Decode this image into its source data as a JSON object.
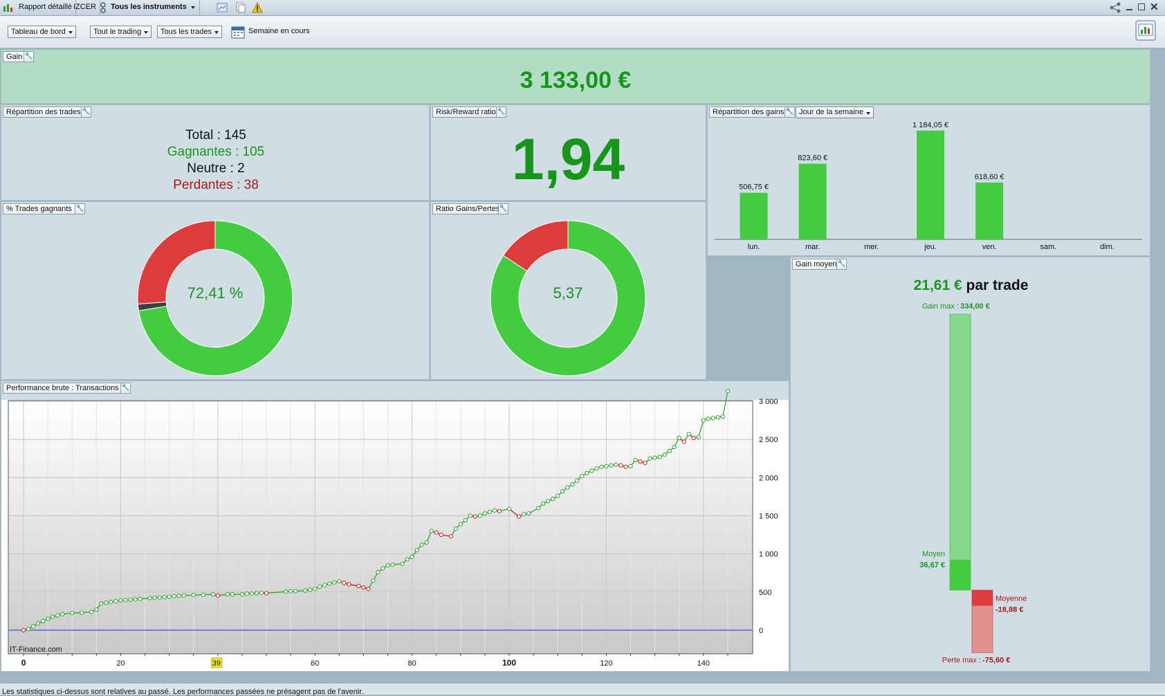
{
  "titlebar": {
    "report_label": "Rapport détaillé",
    "account_label": "IZCER",
    "instruments_label": "Tous les instruments"
  },
  "toolbar": {
    "dashboard_select": "Tableau de bord",
    "trading_select": "Tout le trading",
    "trades_select": "Tous les trades",
    "period_label": "Semaine en cours"
  },
  "gain": {
    "tag": "Gain",
    "value": "3 133,00 €"
  },
  "repartition": {
    "tag": "Répartition des trades",
    "total_label": "Total : 145",
    "winning_label": "Gagnantes : 105",
    "neutral_label": "Neutre : 2",
    "losing_label": "Perdantes : 38"
  },
  "risk_reward": {
    "tag": "Risk/Reward ratio",
    "value": "1,94"
  },
  "win_pct": {
    "tag": "% Trades gagnants",
    "value": "72,41 %",
    "segments": [
      {
        "label": "Gagnantes",
        "value": 105,
        "color": "#43cc3f"
      },
      {
        "label": "Neutre",
        "value": 2,
        "color": "#3a3f42"
      },
      {
        "label": "Perdantes",
        "value": 38,
        "color": "#de3b3b"
      }
    ]
  },
  "ratio_gp": {
    "tag": "Ratio Gains/Pertes",
    "value": "5,37",
    "segments": [
      {
        "label": "Gains",
        "value": 5.37,
        "color": "#43cc3f"
      },
      {
        "label": "Pertes",
        "value": 1,
        "color": "#de3b3b"
      }
    ]
  },
  "gains_split": {
    "tag": "Répartition des gains",
    "select": "Jour de la semaine"
  },
  "gain_moyen": {
    "tag": "Gain moyen",
    "value": "21,61 €",
    "suffix": "par trade",
    "max_label": "Gain max :",
    "max_value": "334,00 €",
    "avg_gain_label": "Moyen",
    "avg_gain_value": "36,67 €",
    "avg_loss_label": "Moyenne",
    "avg_loss_value": "-18,88 €",
    "min_label": "Perte max :",
    "min_value": "-75,60 €",
    "scale": {
      "max_gain": 334.0,
      "avg_gain": 36.67,
      "avg_loss": 18.88,
      "max_loss": 75.6
    }
  },
  "performance": {
    "tag": "Performance brute : Transactions",
    "watermark": "IT-Finance.com",
    "cursor_label": "39"
  },
  "footer": {
    "disclaimer": "Les statistiques ci-dessus sont relatives au passé. Les performances passées ne présagent pas de l'avenir."
  },
  "colors": {
    "gain_green": "#17961b",
    "loss_red": "#a81a1a",
    "bar_green": "#43cc3f",
    "bar_red": "#de3b3b"
  },
  "chart_data": [
    {
      "type": "bar",
      "title": "Répartition des gains",
      "categories": [
        "lun.",
        "mar.",
        "mer.",
        "jeu.",
        "ven.",
        "sam.",
        "dim."
      ],
      "values": [
        506.75,
        823.6,
        0,
        1184.05,
        618.6,
        0,
        0
      ],
      "data_labels": [
        "506,75 €",
        "823,60 €",
        "",
        "1 184,05 €",
        "618,60 €",
        "",
        ""
      ],
      "ylim": [
        0,
        1250
      ],
      "grid": false
    },
    {
      "type": "line",
      "title": "Performance brute : Transactions",
      "xlim": [
        -3,
        150
      ],
      "ylim": [
        -300,
        3000
      ],
      "x_ticks": [
        0,
        20,
        40,
        60,
        80,
        100,
        120,
        140
      ],
      "y_ticks": [
        0,
        500,
        1000,
        1500,
        2000,
        2500,
        3000
      ],
      "y_tick_labels": [
        "0",
        "500",
        "1 000",
        "1 500",
        "2 000",
        "2 500",
        "3 000"
      ],
      "grid": true,
      "points": [
        [
          0,
          0
        ],
        [
          1,
          15
        ],
        [
          2,
          50
        ],
        [
          3,
          90
        ],
        [
          4,
          120
        ],
        [
          5,
          150
        ],
        [
          6,
          175
        ],
        [
          7,
          195
        ],
        [
          8,
          210
        ],
        [
          10,
          225
        ],
        [
          12,
          230
        ],
        [
          14,
          240
        ],
        [
          15,
          270
        ],
        [
          16,
          350
        ],
        [
          17,
          360
        ],
        [
          18,
          370
        ],
        [
          19,
          380
        ],
        [
          20,
          390
        ],
        [
          21,
          395
        ],
        [
          22,
          400
        ],
        [
          23,
          405
        ],
        [
          24,
          410
        ],
        [
          26,
          420
        ],
        [
          27,
          425
        ],
        [
          28,
          430
        ],
        [
          29,
          435
        ],
        [
          30,
          440
        ],
        [
          31,
          445
        ],
        [
          32,
          450
        ],
        [
          33,
          455
        ],
        [
          35,
          460
        ],
        [
          37,
          465
        ],
        [
          39,
          470
        ],
        [
          40,
          455
        ],
        [
          42,
          470
        ],
        [
          43,
          470
        ],
        [
          45,
          470
        ],
        [
          46,
          480
        ],
        [
          47,
          480
        ],
        [
          48,
          485
        ],
        [
          49,
          490
        ],
        [
          50,
          485
        ],
        [
          54,
          505
        ],
        [
          55,
          510
        ],
        [
          56,
          510
        ],
        [
          58,
          520
        ],
        [
          59,
          530
        ],
        [
          60,
          545
        ],
        [
          61,
          570
        ],
        [
          62,
          590
        ],
        [
          63,
          610
        ],
        [
          64,
          625
        ],
        [
          65,
          640
        ],
        [
          66,
          620
        ],
        [
          67,
          600
        ],
        [
          69,
          580
        ],
        [
          70,
          560
        ],
        [
          71,
          540
        ],
        [
          72,
          650
        ],
        [
          73,
          760
        ],
        [
          74,
          810
        ],
        [
          75,
          850
        ],
        [
          76,
          860
        ],
        [
          78,
          870
        ],
        [
          79,
          930
        ],
        [
          80,
          960
        ],
        [
          81,
          1050
        ],
        [
          82,
          1120
        ],
        [
          83,
          1150
        ],
        [
          84,
          1300
        ],
        [
          85,
          1280
        ],
        [
          86,
          1250
        ],
        [
          88,
          1230
        ],
        [
          89,
          1330
        ],
        [
          90,
          1390
        ],
        [
          91,
          1440
        ],
        [
          92,
          1500
        ],
        [
          93,
          1490
        ],
        [
          94,
          1500
        ],
        [
          95,
          1530
        ],
        [
          96,
          1550
        ],
        [
          97,
          1570
        ],
        [
          98,
          1560
        ],
        [
          100,
          1590
        ],
        [
          102,
          1490
        ],
        [
          103,
          1520
        ],
        [
          104,
          1530
        ],
        [
          106,
          1600
        ],
        [
          107,
          1660
        ],
        [
          108,
          1690
        ],
        [
          109,
          1720
        ],
        [
          110,
          1760
        ],
        [
          111,
          1820
        ],
        [
          112,
          1870
        ],
        [
          113,
          1910
        ],
        [
          114,
          1960
        ],
        [
          115,
          2020
        ],
        [
          116,
          2060
        ],
        [
          117,
          2090
        ],
        [
          118,
          2120
        ],
        [
          119,
          2140
        ],
        [
          120,
          2150
        ],
        [
          121,
          2160
        ],
        [
          122,
          2170
        ],
        [
          123,
          2160
        ],
        [
          124,
          2140
        ],
        [
          125,
          2150
        ],
        [
          126,
          2230
        ],
        [
          127,
          2210
        ],
        [
          128,
          2190
        ],
        [
          129,
          2250
        ],
        [
          130,
          2260
        ],
        [
          131,
          2270
        ],
        [
          132,
          2300
        ],
        [
          133,
          2350
        ],
        [
          134,
          2400
        ],
        [
          135,
          2520
        ],
        [
          136,
          2470
        ],
        [
          137,
          2570
        ],
        [
          138,
          2520
        ],
        [
          139,
          2530
        ],
        [
          140,
          2750
        ],
        [
          141,
          2770
        ],
        [
          142,
          2780
        ],
        [
          143,
          2790
        ],
        [
          144,
          2800
        ],
        [
          145,
          3133
        ]
      ]
    }
  ]
}
